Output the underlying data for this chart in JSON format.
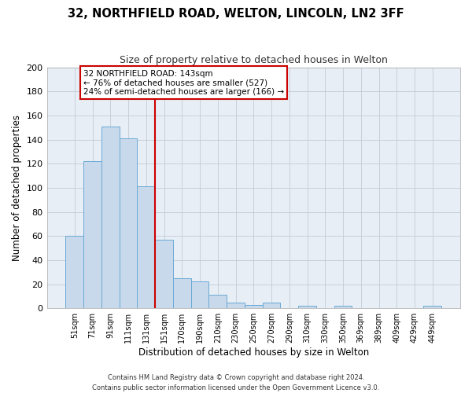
{
  "title": "32, NORTHFIELD ROAD, WELTON, LINCOLN, LN2 3FF",
  "subtitle": "Size of property relative to detached houses in Welton",
  "xlabel": "Distribution of detached houses by size in Welton",
  "ylabel": "Number of detached properties",
  "bar_labels": [
    "51sqm",
    "71sqm",
    "91sqm",
    "111sqm",
    "131sqm",
    "151sqm",
    "170sqm",
    "190sqm",
    "210sqm",
    "230sqm",
    "250sqm",
    "270sqm",
    "290sqm",
    "310sqm",
    "330sqm",
    "350sqm",
    "369sqm",
    "389sqm",
    "409sqm",
    "429sqm",
    "449sqm"
  ],
  "bar_values": [
    60,
    122,
    151,
    141,
    101,
    57,
    25,
    22,
    11,
    5,
    3,
    5,
    0,
    2,
    0,
    2,
    0,
    0,
    0,
    0,
    2
  ],
  "bar_color": "#c9d9ec",
  "bar_edge_color": "#6aaad4",
  "vline_x_idx": 5,
  "vline_color": "#cc0000",
  "annotation_title": "32 NORTHFIELD ROAD: 143sqm",
  "annotation_line1": "← 76% of detached houses are smaller (527)",
  "annotation_line2": "24% of semi-detached houses are larger (166) →",
  "annotation_box_color": "#ffffff",
  "annotation_box_edge": "#cc0000",
  "ylim": [
    0,
    200
  ],
  "yticks": [
    0,
    20,
    40,
    60,
    80,
    100,
    120,
    140,
    160,
    180,
    200
  ],
  "footer1": "Contains HM Land Registry data © Crown copyright and database right 2024.",
  "footer2": "Contains public sector information licensed under the Open Government Licence v3.0.",
  "bg_color": "#ffffff",
  "axes_bg_color": "#e8eef5",
  "grid_color": "#c0ccd8"
}
